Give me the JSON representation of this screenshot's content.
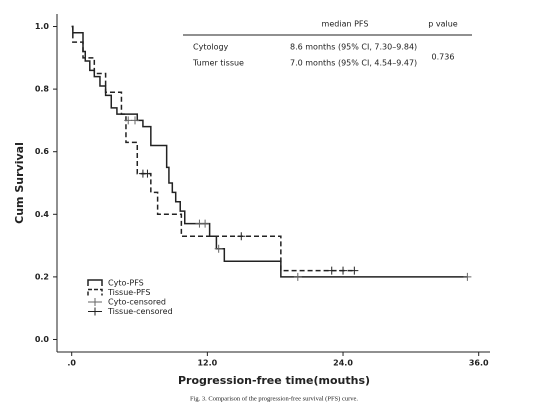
{
  "chart_data": {
    "type": "step",
    "x_label": "Progression-free time(mouths)",
    "y_label": "Cum Survival",
    "caption": "Fig. 3.  Comparison of the progression-free survival (PFS) curve.",
    "xlim": [
      -1.3,
      37
    ],
    "ylim": [
      -0.04,
      1.04
    ],
    "xticks": [
      {
        "value": 0,
        "label": ".0"
      },
      {
        "value": 12,
        "label": "12.0"
      },
      {
        "value": 24,
        "label": "24.0"
      },
      {
        "value": 36,
        "label": "36.0"
      }
    ],
    "yticks": [
      {
        "value": 0,
        "label": "0.0"
      },
      0.2,
      0.4,
      0.6,
      0.8,
      {
        "value": 1,
        "label": "1.0"
      }
    ],
    "legend": "lower left",
    "series": [
      {
        "name": "Cyto-PFS",
        "kind": "step",
        "dash": "solid",
        "color": "#222222",
        "x": [
          0,
          0.1,
          1,
          1.2,
          1.6,
          2,
          2.5,
          3,
          3.5,
          4,
          5.8,
          6.3,
          7,
          8.4,
          8.6,
          8.9,
          9.2,
          9.6,
          10,
          12.2,
          12.8,
          13.5,
          18.5,
          35
        ],
        "values": [
          1.0,
          0.98,
          0.92,
          0.89,
          0.86,
          0.84,
          0.81,
          0.78,
          0.74,
          0.72,
          0.7,
          0.68,
          0.62,
          0.55,
          0.5,
          0.47,
          0.44,
          0.41,
          0.37,
          0.33,
          0.29,
          0.25,
          0.2,
          0.2
        ]
      },
      {
        "name": "Tissue-PFS",
        "kind": "step",
        "dash": "dashed",
        "color": "#222222",
        "x": [
          0,
          0.1,
          1,
          2,
          3,
          4.4,
          4.8,
          5.8,
          7,
          7.6,
          9.7,
          18.5,
          25
        ],
        "values": [
          1.0,
          0.95,
          0.9,
          0.85,
          0.79,
          0.72,
          0.63,
          0.53,
          0.47,
          0.4,
          0.33,
          0.22,
          0.22
        ]
      },
      {
        "name": "Cyto-censored",
        "kind": "censor",
        "color": "#666666",
        "x": [
          5,
          5.6,
          11.3,
          11.8,
          13,
          20,
          35
        ],
        "values": [
          0.7,
          0.7,
          0.37,
          0.37,
          0.29,
          0.2,
          0.2
        ]
      },
      {
        "name": "Tissue-censored",
        "kind": "censor",
        "color": "#222222",
        "x": [
          6.3,
          6.7,
          15,
          23,
          24,
          25
        ],
        "values": [
          0.53,
          0.53,
          0.33,
          0.22,
          0.22,
          0.22
        ]
      }
    ],
    "summary_table": {
      "header": [
        "median PFS",
        "p value"
      ],
      "rows": [
        [
          "Cytology",
          "8.6 months (95% CI, 7.30–9.84)"
        ],
        [
          "Tumer tissue",
          "7.0 months (95% CI, 4.54–9.47)"
        ]
      ],
      "p_value": "0.736"
    }
  }
}
